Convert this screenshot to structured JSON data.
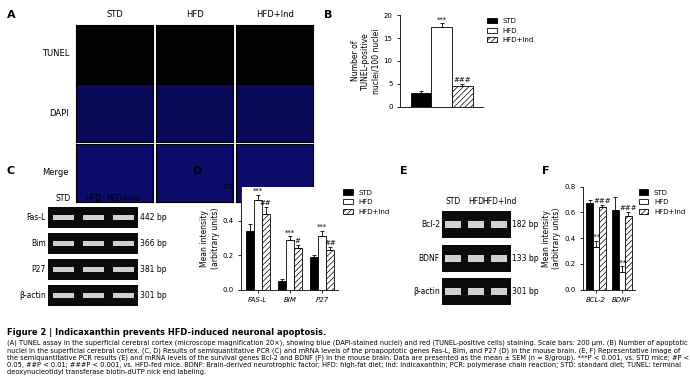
{
  "panel_a": {
    "label": "A",
    "columns": [
      "STD",
      "HFD",
      "HFD+Ind"
    ],
    "rows": [
      "TUNEL",
      "DAPI",
      "Merge"
    ]
  },
  "gels": [
    {
      "label": "C",
      "lanes": [
        "STD",
        "HFD",
        "HFD+Ind"
      ],
      "bands": [
        {
          "name": "Fas-L",
          "size": "442 bp"
        },
        {
          "name": "Bim",
          "size": "366 bp"
        },
        {
          "name": "P27",
          "size": "381 bp"
        },
        {
          "name": "β-actin",
          "size": "301 bp"
        }
      ]
    },
    {
      "label": "E",
      "lanes": [
        "STD",
        "HFD",
        "HFD+Ind"
      ],
      "bands": [
        {
          "name": "Bcl-2",
          "size": "182 bp"
        },
        {
          "name": "BDNF",
          "size": "133 bp"
        },
        {
          "name": "β-actin",
          "size": "301 bp"
        }
      ]
    }
  ],
  "chart_data": [
    {
      "label": "B",
      "type": "bar",
      "categories": [
        null
      ],
      "ylabel": "Number of\nTUNEL-positive\nnuclei/100 nuclei",
      "ylim": [
        0,
        20
      ],
      "yticks": [
        0,
        5,
        10,
        15,
        20
      ],
      "legend": "right",
      "series": [
        {
          "name": "STD",
          "color": "#000000",
          "values": [
            3.0
          ],
          "errors": [
            0.5
          ],
          "annotations": [
            null
          ]
        },
        {
          "name": "HFD",
          "color": "#ffffff",
          "values": [
            17.5
          ],
          "errors": [
            0.7
          ],
          "annotations": [
            "***"
          ]
        },
        {
          "name": "HFD+Ind",
          "color": "#ffffff",
          "values": [
            4.5
          ],
          "errors": [
            0.4
          ],
          "annotations": [
            "###"
          ]
        }
      ]
    },
    {
      "label": "D",
      "type": "bar",
      "categories": [
        "FAS-L",
        "BIM",
        "P27"
      ],
      "ylabel": "Mean intensity\n(arbitrary units)",
      "ylim": [
        0,
        0.6
      ],
      "yticks": [
        {
          "value": 0,
          "label": "0.0"
        },
        0.2,
        0.4,
        0.6
      ],
      "legend": "right",
      "series": [
        {
          "name": "STD",
          "color": "#000000",
          "values": [
            0.34,
            0.05,
            0.19
          ],
          "errors": [
            0.04,
            0.01,
            0.01
          ],
          "annotations": [
            null,
            null,
            null
          ]
        },
        {
          "name": "HFD",
          "color": "#ffffff",
          "values": [
            0.52,
            0.29,
            0.31
          ],
          "errors": [
            0.03,
            0.02,
            0.03
          ],
          "annotations": [
            "***",
            "***",
            "***"
          ]
        },
        {
          "name": "HFD+Ind",
          "color": "#ffffff",
          "values": [
            0.44,
            0.24,
            0.23
          ],
          "errors": [
            0.04,
            0.02,
            0.02
          ],
          "annotations": [
            "##",
            "#",
            "##"
          ]
        }
      ]
    },
    {
      "label": "F",
      "type": "bar",
      "categories": [
        "BCL-2",
        "BDNF"
      ],
      "ylabel": "Mean intensity\n(arbitrary units)",
      "ylim": [
        0,
        0.8
      ],
      "yticks": [
        {
          "value": 0,
          "label": "0.0"
        },
        0.2,
        0.4,
        0.6,
        0.8
      ],
      "legend": "right",
      "series": [
        {
          "name": "STD",
          "color": "#000000",
          "values": [
            0.67,
            0.62
          ],
          "errors": [
            0.03,
            0.1
          ],
          "annotations": [
            null,
            null
          ]
        },
        {
          "name": "HFD",
          "color": "#ffffff",
          "values": [
            0.33,
            0.14
          ],
          "errors": [
            0.05,
            0.04
          ],
          "annotations": [
            "***",
            "***"
          ]
        },
        {
          "name": "HFD+Ind",
          "color": "#ffffff",
          "values": [
            0.64,
            0.57
          ],
          "errors": [
            0.02,
            0.03
          ],
          "annotations": [
            "###",
            "###"
          ]
        }
      ]
    }
  ],
  "caption": {
    "title": "Figure 2 | Indicaxanthin prevents HFD-induced neuronal apoptosis.",
    "text": "(A) TUNEL assay in the superficial cerebral cortex (microscope magnification 20×), showing blue (DAPI-stained nuclei) and red (TUNEL-positive cells) staining. Scale bars: 200 µm. (B) Number of apoptotic nuclei in the superficial cerebral cortex. (C, D) Results of semiquantitative PCR (C) and mRNA levels of the proapoptotic genes Fas-L, Bim, and P27 (D) in the mouse brain. (E, F) Representative image of the semiquantitative PCR results (E) and mRNA levels of the survival genes Bcl-2 and BDNF (F) in the mouse brain. Data are presented as the mean ± SEM (n = 8/group). ***P < 0.001, vs. STD mice; #P < 0.05, ##P < 0.01; ###P < 0.001, vs. HFD-fed mice. BDNF: Brain-derived neurotrophic factor; HFD: high-fat diet; Ind: indicaxanthin; PCR: polymerase chain reaction; STD: standard diet; TUNEL: terminal deoxynucleotidyl transferase biotin-dUTP nick end labeling."
  }
}
